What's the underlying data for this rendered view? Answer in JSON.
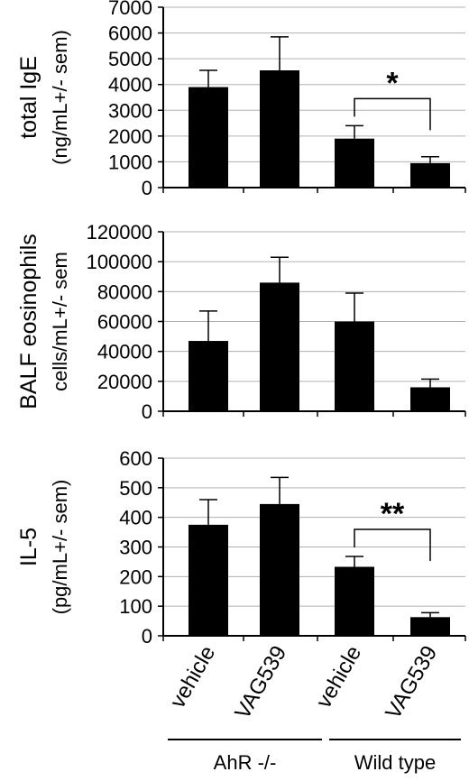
{
  "chart_data": [
    {
      "type": "bar",
      "ylabel_lines": [
        "total IgE",
        "(ng/mL+/- sem)"
      ],
      "ylim": [
        0,
        7000
      ],
      "yticks": [
        "0",
        "1000",
        "2000",
        "3000",
        "4000",
        "5000",
        "6000",
        "7000"
      ],
      "categories": [
        "vehicle",
        "VAG539",
        "vehicle",
        "VAG539"
      ],
      "values": [
        3900,
        4550,
        1900,
        950
      ],
      "errors": [
        650,
        1300,
        500,
        250
      ],
      "grid": true,
      "significance": {
        "between": [
          2,
          3
        ],
        "label": "*"
      }
    },
    {
      "type": "bar",
      "ylabel_lines": [
        "BALF eosinophils",
        "cells/mL+/- sem"
      ],
      "ylim": [
        0,
        120000
      ],
      "yticks": [
        "0",
        "20000",
        "40000",
        "60000",
        "80000",
        "100000",
        "120000"
      ],
      "categories": [
        "vehicle",
        "VAG539",
        "vehicle",
        "VAG539"
      ],
      "values": [
        47000,
        86000,
        60000,
        16000
      ],
      "errors": [
        20000,
        17000,
        19000,
        5500
      ],
      "grid": true
    },
    {
      "type": "bar",
      "ylabel_lines": [
        "IL-5",
        "(pg/mL+/- sem)"
      ],
      "ylim": [
        0,
        600
      ],
      "yticks": [
        "0",
        "100",
        "200",
        "300",
        "400",
        "500",
        "600"
      ],
      "categories": [
        "vehicle",
        "VAG539",
        "vehicle",
        "VAG539"
      ],
      "values": [
        375,
        445,
        233,
        63
      ],
      "errors": [
        85,
        90,
        35,
        15
      ],
      "grid": true,
      "significance": {
        "between": [
          2,
          3
        ],
        "label": "**"
      }
    }
  ],
  "groups": [
    {
      "label": "AhR -/-",
      "bars": [
        0,
        1
      ]
    },
    {
      "label": "Wild type",
      "bars": [
        2,
        3
      ]
    }
  ],
  "colors": {
    "bar": "#000000",
    "grid": "#b0b0b0",
    "axis": "#000000",
    "background": "#ffffff"
  }
}
